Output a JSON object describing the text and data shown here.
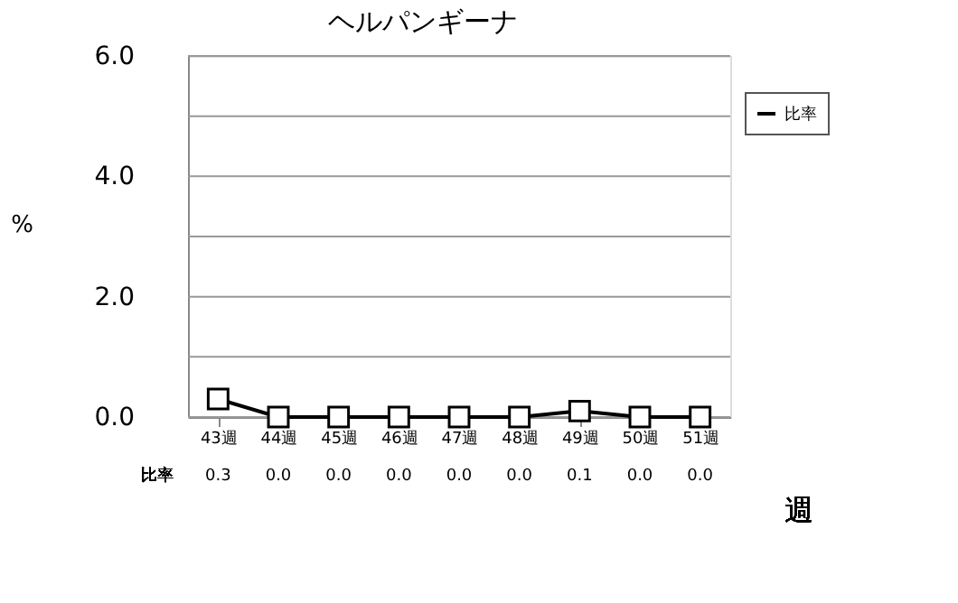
{
  "chart_data": {
    "type": "line",
    "title": "ヘルパンギーナ",
    "xlabel": "週",
    "ylabel": "%",
    "categories": [
      "43週",
      "44週",
      "45週",
      "46週",
      "47週",
      "48週",
      "49週",
      "50週",
      "51週"
    ],
    "series": [
      {
        "name": "比率",
        "color": "#000000",
        "values": [
          0.3,
          0.0,
          0.0,
          0.0,
          0.0,
          0.0,
          0.1,
          0.0,
          0.0
        ],
        "value_labels": [
          "0.3",
          "0.0",
          "0.0",
          "0.0",
          "0.0",
          "0.0",
          "0.1",
          "0.0",
          "0.0"
        ]
      }
    ],
    "ylim": [
      0,
      6
    ],
    "yticks": [
      {
        "value": 0,
        "label": "0.0"
      },
      {
        "value": 1,
        "label": null
      },
      {
        "value": 2,
        "label": "2.0"
      },
      {
        "value": 3,
        "label": null
      },
      {
        "value": 4,
        "label": "4.0"
      },
      {
        "value": 5,
        "label": null
      },
      {
        "value": 6,
        "label": "6.0"
      }
    ],
    "grid": "y",
    "legend": "top right",
    "marker": "square",
    "line_style": "solid"
  }
}
